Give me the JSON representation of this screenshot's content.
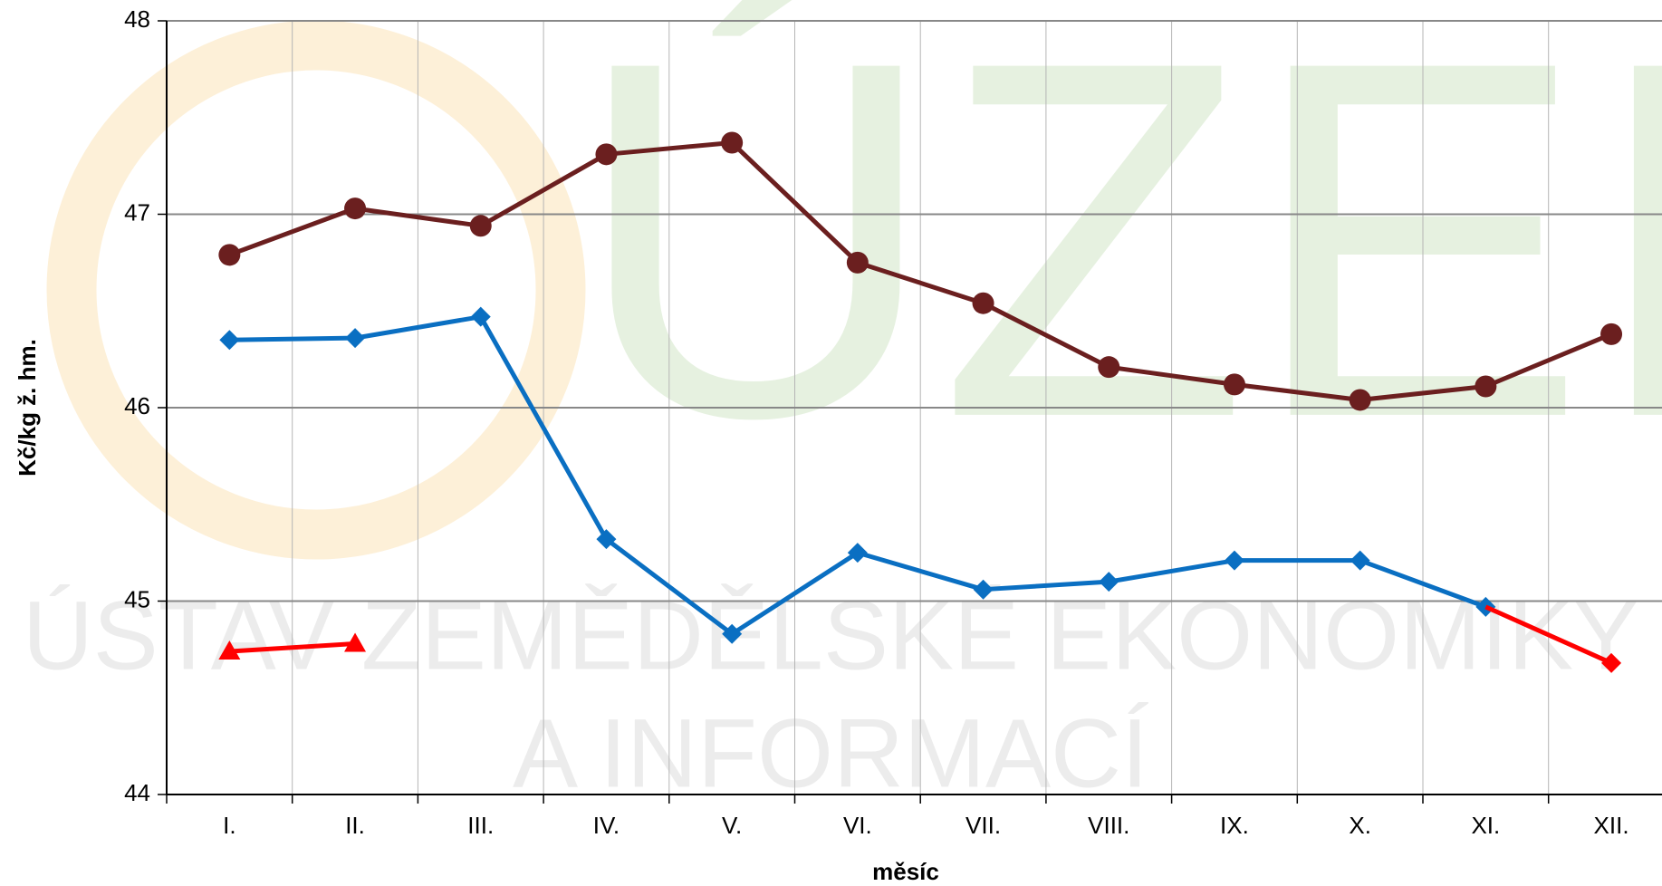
{
  "chart_data": {
    "type": "line",
    "categories": [
      "I.",
      "II.",
      "III.",
      "IV.",
      "V.",
      "VI.",
      "VII.",
      "VIII.",
      "IX.",
      "X.",
      "XI.",
      "XII."
    ],
    "series": [
      {
        "color": "#6b1f1f",
        "marker": "circle",
        "values": [
          46.79,
          47.03,
          46.94,
          47.31,
          47.37,
          46.75,
          46.54,
          46.21,
          46.12,
          46.04,
          46.11,
          46.38
        ]
      },
      {
        "color": "#0a6fc2",
        "marker": "diamond",
        "values": [
          46.35,
          46.36,
          46.47,
          45.32,
          44.83,
          45.25,
          45.06,
          45.1,
          45.21,
          45.21,
          44.97,
          null
        ]
      },
      {
        "color": "#ff0000",
        "marker": "triangle",
        "values": [
          44.74,
          44.78,
          null,
          null,
          null,
          null,
          null,
          null,
          null,
          null,
          44.97,
          44.68
        ]
      }
    ],
    "ylim": [
      44,
      48
    ],
    "yticks": [
      44,
      45,
      46,
      47,
      48
    ],
    "grid": true,
    "xlabel": "měsíc",
    "ylabel": "Kč/kg ž. hm.",
    "watermark": {
      "logo": "ÚZEI",
      "lines": [
        "ÚSTAV ZEMĚDĚLSKÉ EKONOMIKY",
        "A INFORMACÍ"
      ]
    }
  }
}
